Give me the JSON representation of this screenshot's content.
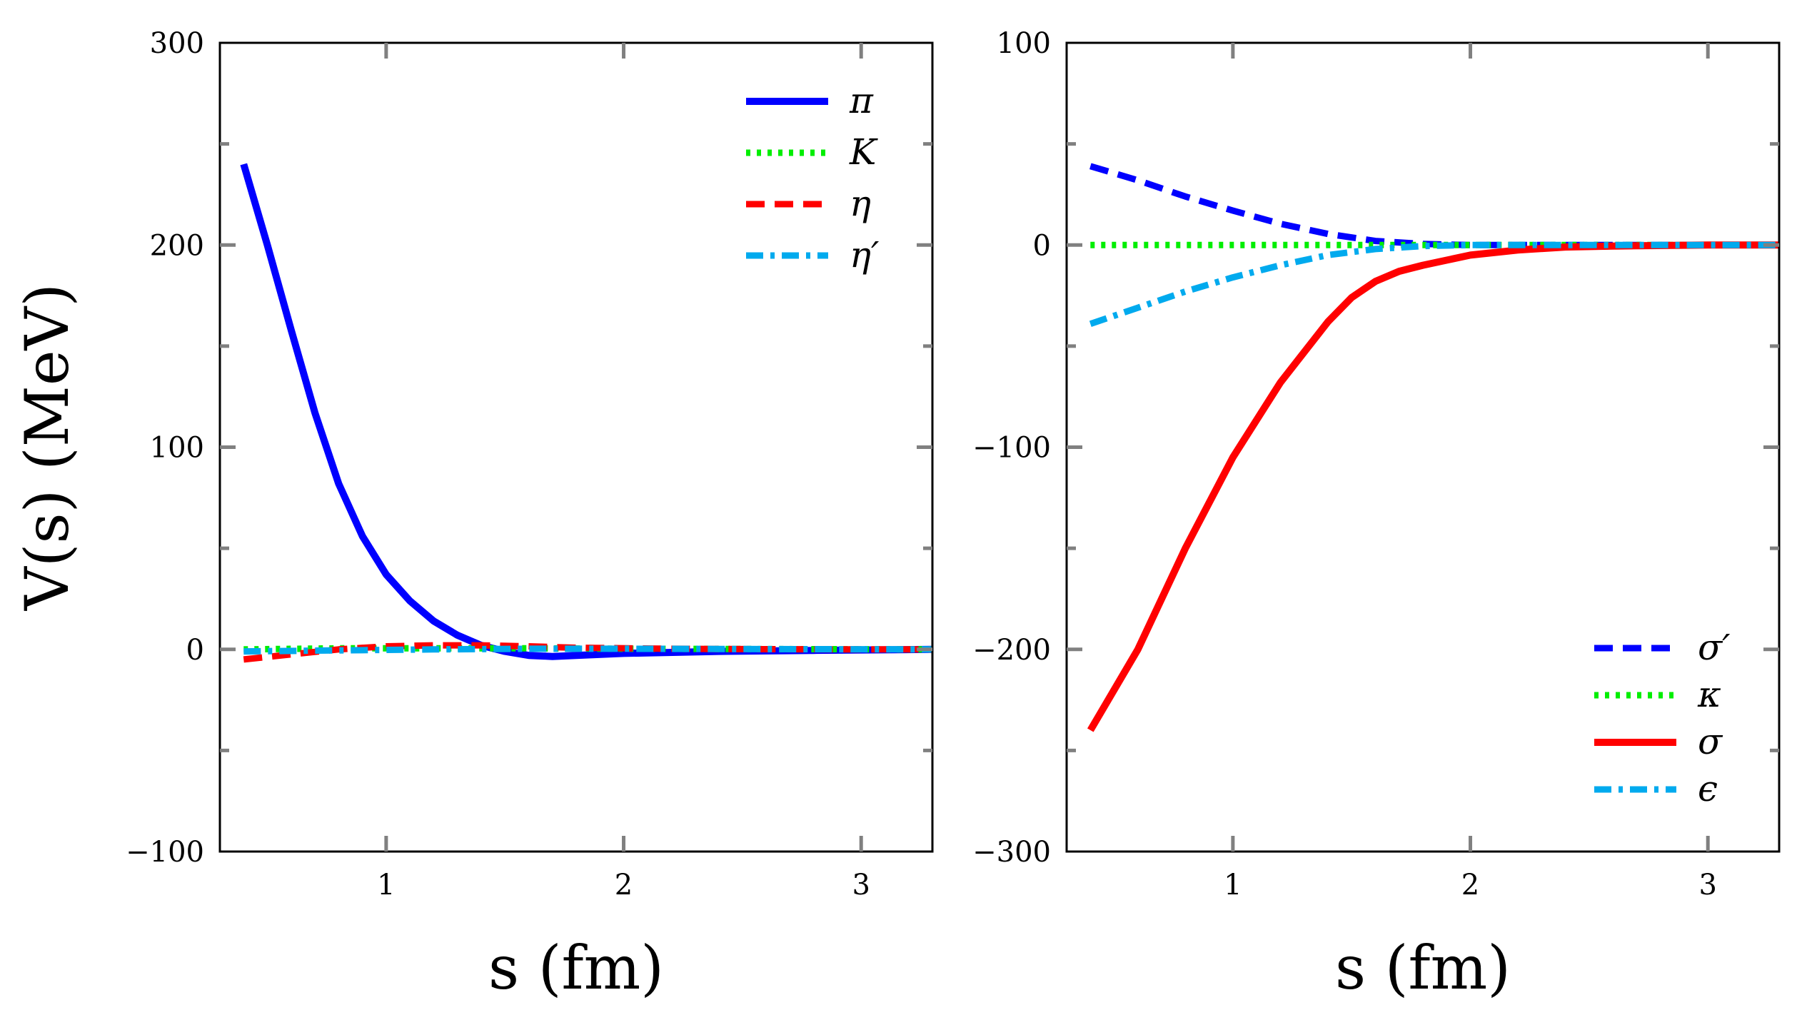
{
  "chart_data": [
    {
      "type": "line",
      "panel": "left",
      "xlabel": "s (fm)",
      "ylabel": "V(s) (MeV)",
      "xlim": [
        0.3,
        3.3
      ],
      "ylim": [
        -100,
        300
      ],
      "xticks": [
        1,
        2,
        3
      ],
      "xtick_labels": [
        "1",
        "2",
        "3"
      ],
      "yticks": [
        -100,
        0,
        100,
        200,
        300
      ],
      "ytick_labels": [
        "−100",
        "0",
        "100",
        "200",
        "300"
      ],
      "legend_position": "top-right",
      "series": [
        {
          "name": "π",
          "color": "#0000ff",
          "style": "solid",
          "x": [
            0.4,
            0.5,
            0.6,
            0.7,
            0.8,
            0.9,
            1.0,
            1.1,
            1.2,
            1.3,
            1.4,
            1.5,
            1.6,
            1.7,
            1.8,
            2.0,
            2.4,
            2.8,
            3.3
          ],
          "y": [
            240,
            200,
            158,
            117,
            82,
            56,
            37,
            24,
            14,
            7,
            2,
            -1,
            -3,
            -3.5,
            -3,
            -2,
            -1,
            -0.5,
            0
          ]
        },
        {
          "name": "K",
          "color": "#00ee00",
          "style": "dotted",
          "x": [
            0.4,
            0.8,
            1.2,
            1.6,
            2.0,
            2.4,
            2.8,
            3.3
          ],
          "y": [
            0,
            0.5,
            0.5,
            0.5,
            0.3,
            0.2,
            0.1,
            0
          ]
        },
        {
          "name": "η",
          "color": "#ff0000",
          "style": "dashed",
          "x": [
            0.4,
            0.6,
            0.8,
            1.0,
            1.2,
            1.4,
            1.6,
            1.8,
            2.2,
            2.6,
            3.0,
            3.3
          ],
          "y": [
            -5,
            -2.5,
            0,
            1.5,
            2,
            2,
            1.5,
            0.8,
            0.3,
            0.1,
            0,
            0
          ]
        },
        {
          "name": "η′",
          "color": "#00aaee",
          "style": "dashdot",
          "x": [
            0.4,
            0.8,
            1.2,
            1.6,
            2.0,
            2.4,
            2.8,
            3.3
          ],
          "y": [
            -1,
            -0.5,
            0,
            0.3,
            0.3,
            0.2,
            0.1,
            0
          ]
        }
      ]
    },
    {
      "type": "line",
      "panel": "right",
      "xlabel": "s (fm)",
      "ylabel": "",
      "xlim": [
        0.3,
        3.3
      ],
      "ylim": [
        -300,
        100
      ],
      "xticks": [
        1,
        2,
        3
      ],
      "xtick_labels": [
        "1",
        "2",
        "3"
      ],
      "yticks": [
        -300,
        -200,
        -100,
        0,
        100
      ],
      "ytick_labels": [
        "−300",
        "−200",
        "−100",
        "0",
        "100"
      ],
      "legend_position": "bottom-right",
      "series": [
        {
          "name": "σ′",
          "color": "#0000ff",
          "style": "dashed",
          "x": [
            0.4,
            0.6,
            0.8,
            1.0,
            1.2,
            1.4,
            1.6,
            1.8,
            2.0,
            2.2,
            2.6,
            3.0,
            3.3
          ],
          "y": [
            39,
            32,
            24,
            17,
            10.5,
            5.5,
            2,
            0.5,
            0,
            0,
            0,
            0,
            0
          ]
        },
        {
          "name": "κ",
          "color": "#00ee00",
          "style": "dotted",
          "x": [
            0.4,
            1.0,
            1.6,
            2.2,
            2.8,
            3.3
          ],
          "y": [
            0,
            0,
            0,
            0,
            0,
            0
          ]
        },
        {
          "name": "σ",
          "color": "#ff0000",
          "style": "solid",
          "x": [
            0.4,
            0.6,
            0.8,
            1.0,
            1.2,
            1.4,
            1.5,
            1.6,
            1.7,
            1.8,
            2.0,
            2.2,
            2.4,
            2.6,
            3.0,
            3.3
          ],
          "y": [
            -240,
            -200,
            -150,
            -105,
            -68,
            -38,
            -26,
            -18,
            -13,
            -10,
            -5,
            -2.5,
            -1,
            -0.5,
            0,
            0
          ]
        },
        {
          "name": "ϵ",
          "color": "#00aaee",
          "style": "dashdot",
          "x": [
            0.4,
            0.6,
            0.8,
            1.0,
            1.2,
            1.4,
            1.6,
            1.8,
            2.0,
            2.2,
            2.6,
            3.0,
            3.3
          ],
          "y": [
            -39,
            -31,
            -23,
            -16,
            -10,
            -5,
            -2,
            -0.5,
            0,
            0,
            0,
            0,
            0
          ]
        }
      ]
    }
  ]
}
